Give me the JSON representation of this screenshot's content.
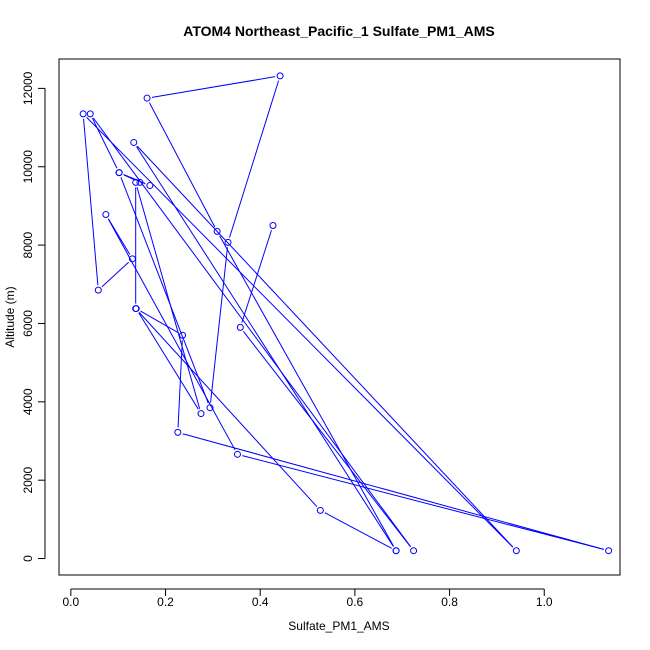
{
  "chart_data": {
    "type": "line",
    "title": "ATOM4 Northeast_Pacific_1 Sulfate_PM1_AMS",
    "xlabel": "Sulfate_PM1_AMS",
    "ylabel": "Altitude (m)",
    "xlim": [
      -0.025,
      1.16
    ],
    "ylim": [
      -420,
      12750
    ],
    "xticks": [
      0.0,
      0.2,
      0.4,
      0.6,
      0.8,
      1.0
    ],
    "xtick_labels": [
      "0.0",
      "0.2",
      "0.4",
      "0.6",
      "0.8",
      "1.0"
    ],
    "yticks": [
      0,
      2000,
      4000,
      6000,
      8000,
      10000,
      12000
    ],
    "ytick_labels": [
      "0",
      "2000",
      "4000",
      "6000",
      "8000",
      "10000",
      "12000"
    ],
    "grid": false,
    "color": "#0000ff",
    "marker": "open-circle",
    "series": [
      {
        "points": [
          [
            0.427,
            8500
          ],
          [
            0.358,
            5900
          ],
          [
            0.724,
            200
          ],
          [
            0.041,
            11350
          ],
          [
            0.102,
            9850
          ],
          [
            0.146,
            9600
          ],
          [
            0.167,
            9520
          ],
          [
            0.102,
            9850
          ],
          [
            0.294,
            3850
          ],
          [
            0.332,
            8070
          ],
          [
            0.442,
            12320
          ],
          [
            0.161,
            11750
          ],
          [
            0.309,
            8350
          ],
          [
            0.687,
            200
          ],
          [
            0.133,
            10620
          ],
          [
            0.941,
            200
          ],
          [
            0.026,
            11350
          ],
          [
            0.058,
            6850
          ],
          [
            0.13,
            7650
          ],
          [
            0.074,
            8780
          ],
          [
            0.352,
            2660
          ],
          [
            1.136,
            200
          ],
          [
            0.226,
            3220
          ],
          [
            0.236,
            5700
          ],
          [
            0.138,
            6380
          ],
          [
            0.275,
            3700
          ],
          [
            0.137,
            9600
          ],
          [
            0.137,
            6380
          ],
          [
            0.527,
            1230
          ],
          [
            0.687,
            200
          ]
        ]
      }
    ]
  }
}
